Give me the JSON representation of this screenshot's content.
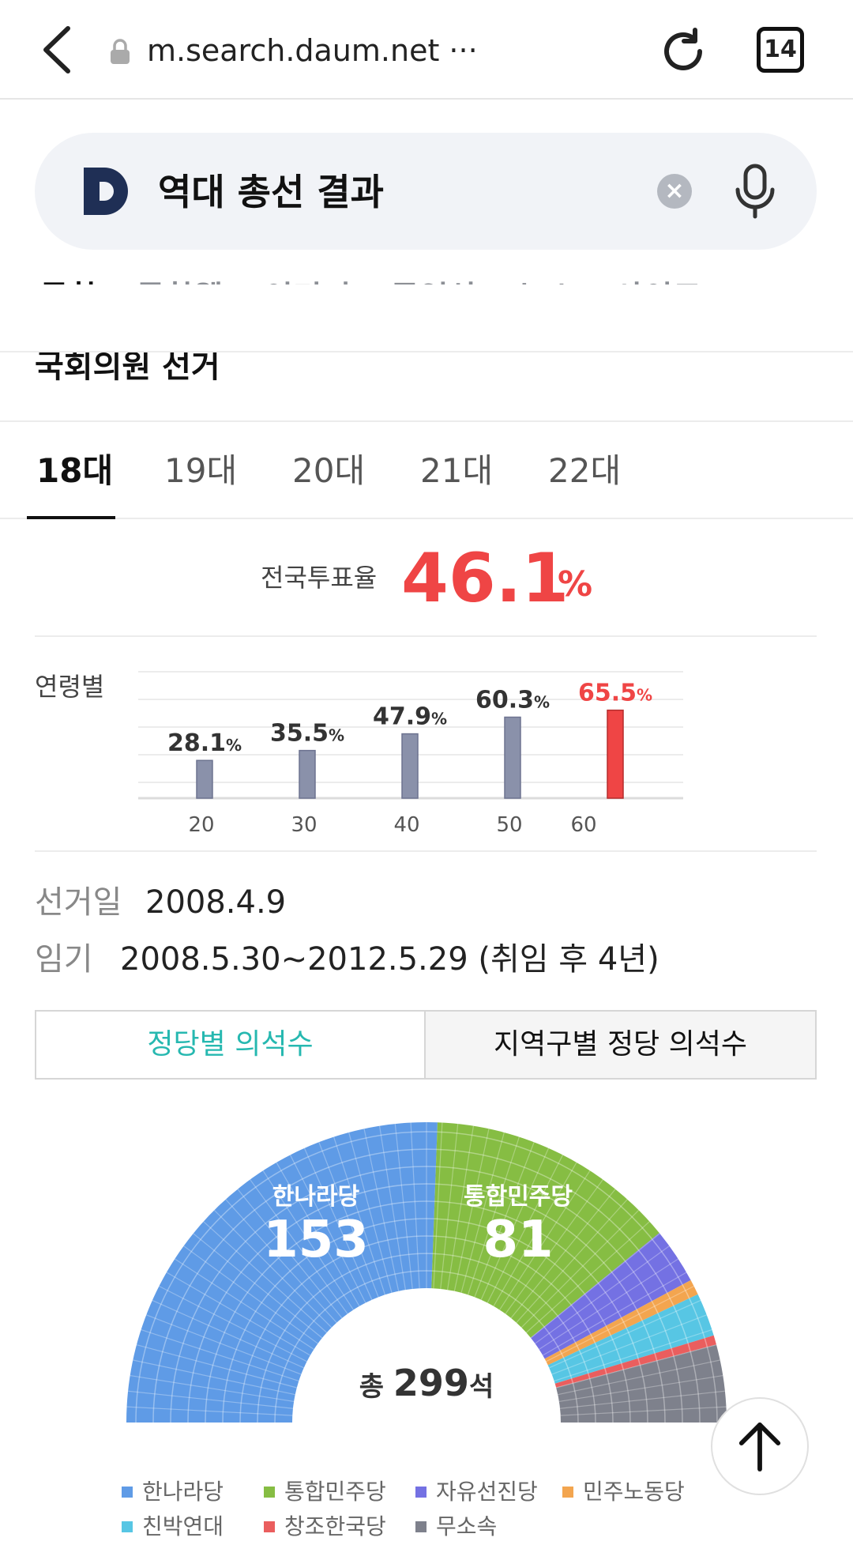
{
  "browser": {
    "url": "m.search.daum.net ···",
    "tab_count": "14"
  },
  "search": {
    "query": "역대 총선 결과",
    "clear_icon": "×"
  },
  "categories": [
    "통합",
    "통합웹",
    "이미지",
    "동영상",
    "뉴스",
    "사이트"
  ],
  "section": {
    "title": "국회의원 선거"
  },
  "election_tabs": [
    "18대",
    "19대",
    "20대",
    "21대",
    "22대"
  ],
  "turnout": {
    "label": "전국투표율",
    "value": "46.1",
    "unit": "%"
  },
  "age": {
    "label": "연령별",
    "chart_data": {
      "type": "bar",
      "categories": [
        "20",
        "30",
        "40",
        "50",
        "60"
      ],
      "values": [
        28.1,
        35.5,
        47.9,
        60.3,
        65.5
      ],
      "value_labels": [
        "28.1",
        "35.5",
        "47.9",
        "60.3",
        "65.5"
      ],
      "unit": "%",
      "highlight_color": "#ef4545",
      "bar_color": "#8a91aa"
    }
  },
  "info": {
    "date_label": "선거일",
    "date_value": "2008.4.9",
    "term_label": "임기",
    "term_value": "2008.5.30~2012.5.29 (취임 후 4년)"
  },
  "toggle": {
    "party": "정당별 의석수",
    "region": "지역구별 정당 의석수"
  },
  "seats": {
    "total_prefix": "총",
    "total_value": "299",
    "total_suffix": "석",
    "chart_data": {
      "type": "pie",
      "series": [
        {
          "name": "한나라당",
          "value": 153,
          "color": "#5f9be6"
        },
        {
          "name": "통합민주당",
          "value": 81,
          "color": "#86bd43"
        },
        {
          "name": "자유선진당",
          "value": 18,
          "color": "#7471e3"
        },
        {
          "name": "민주노동당",
          "value": 5,
          "color": "#f3a54f"
        },
        {
          "name": "친박연대",
          "value": 14,
          "color": "#57c6e4"
        },
        {
          "name": "창조한국당",
          "value": 3,
          "color": "#ea5e5e"
        },
        {
          "name": "무소속",
          "value": 25,
          "color": "#7e818c"
        }
      ]
    }
  },
  "colors": {
    "accent": "#ef4545",
    "teal": "#26b8b0"
  }
}
